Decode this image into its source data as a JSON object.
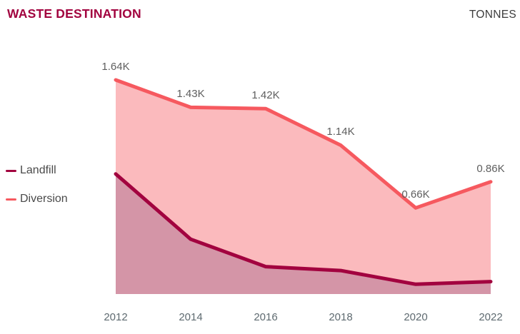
{
  "header": {
    "title": "WASTE DESTINATION",
    "axis_unit": "TONNES"
  },
  "legend": {
    "position": "left",
    "items": [
      {
        "label": "Landfill",
        "color": "#A2033F"
      },
      {
        "label": "Diversion",
        "color": "#F6595F"
      }
    ]
  },
  "chart_data": {
    "type": "area",
    "title": "WASTE DESTINATION",
    "unit_label": "TONNES",
    "categories": [
      "2012",
      "2014",
      "2016",
      "2018",
      "2020",
      "2022"
    ],
    "series": [
      {
        "name": "Landfill",
        "values": [
          920,
          420,
          210,
          180,
          75,
          95
        ],
        "data_labels": [
          "",
          "",
          "",
          "",
          "",
          ""
        ],
        "line_color": "#A2033F",
        "fill_color": "#D495A7"
      },
      {
        "name": "Diversion",
        "values": [
          1640,
          1430,
          1420,
          1140,
          660,
          860
        ],
        "data_labels": [
          "1.64K",
          "1.43K",
          "1.42K",
          "1.14K",
          "0.66K",
          "0.86K"
        ],
        "line_color": "#F6595F",
        "fill_color": "#FBBABD"
      }
    ],
    "ylim": [
      0,
      1640
    ],
    "grid": false,
    "x_axis_visible": true,
    "y_axis_visible": false,
    "legend_position": "left",
    "data_labels_visible_series": "Diversion"
  }
}
